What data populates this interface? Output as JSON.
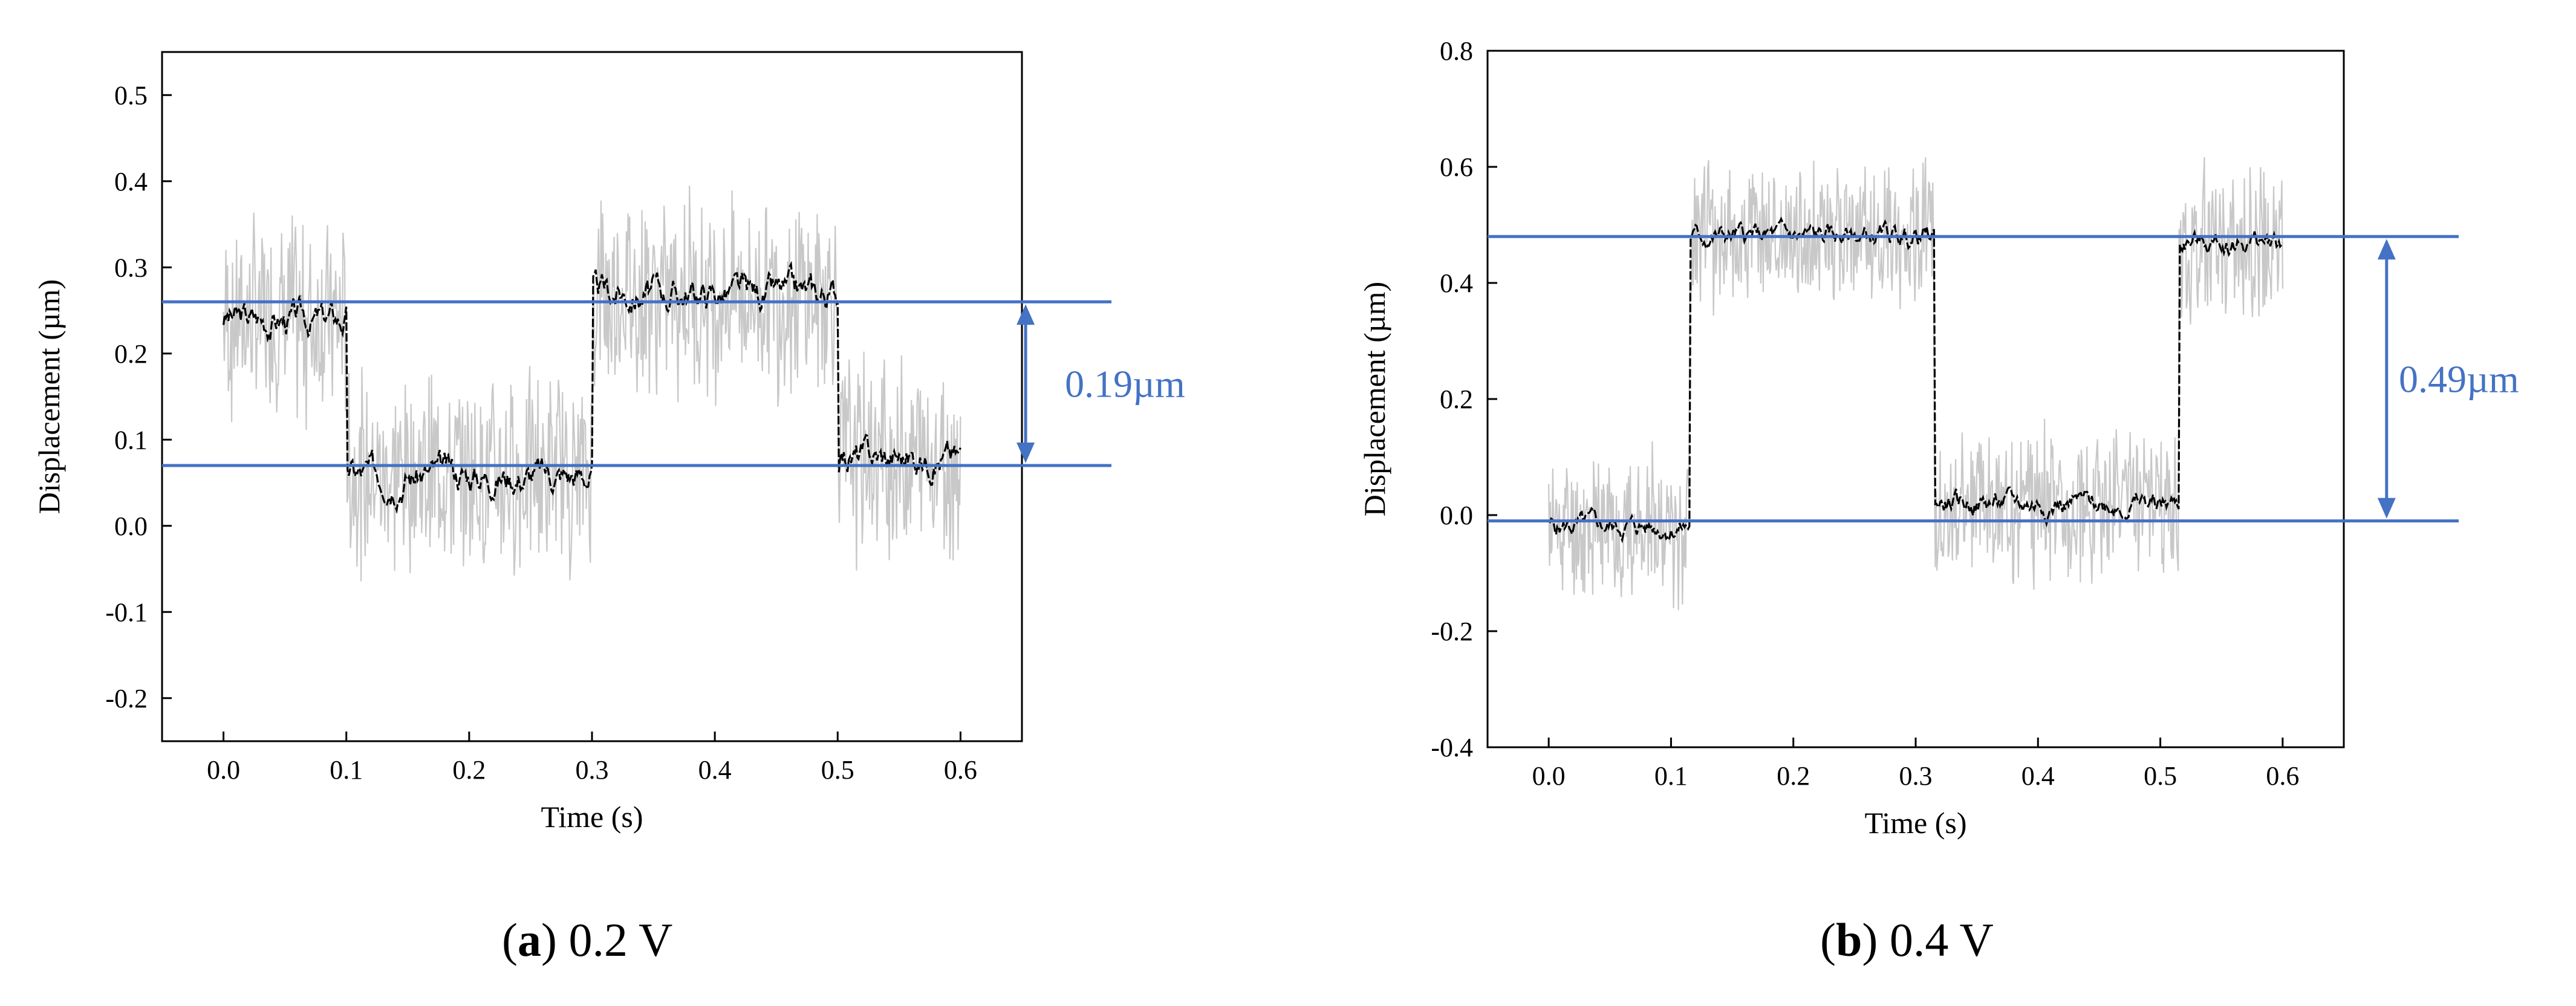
{
  "chart_data": [
    {
      "type": "line",
      "panel": "a",
      "caption_letter": "a",
      "caption_rest": " 0.2 V",
      "xlabel": "Time (s)",
      "ylabel": "Displacement (µm)",
      "xlim": [
        -0.05,
        0.65
      ],
      "ylim": [
        -0.25,
        0.55
      ],
      "xticks": [
        0.0,
        0.1,
        0.2,
        0.3,
        0.4,
        0.5,
        0.6
      ],
      "xtick_labels": [
        "0.0",
        "0.1",
        "0.2",
        "0.3",
        "0.4",
        "0.5",
        "0.6"
      ],
      "yticks": [
        -0.2,
        -0.1,
        0.0,
        0.1,
        0.2,
        0.3,
        0.4,
        0.5
      ],
      "ytick_labels": [
        "-0.2",
        "-0.1",
        "0.0",
        "0.1",
        "0.2",
        "0.3",
        "0.4",
        "0.5"
      ],
      "series": [
        {
          "name": "raw",
          "color": "#c8c8c8",
          "noise": 0.11,
          "seed": 7
        },
        {
          "name": "smoothed",
          "color": "#000000",
          "noise": 0.02,
          "seed": 3
        }
      ],
      "segments": [
        {
          "x0": 0.0,
          "x1": 0.1,
          "y": 0.24
        },
        {
          "x0": 0.1,
          "x1": 0.3,
          "y": 0.06
        },
        {
          "x0": 0.3,
          "x1": 0.5,
          "y": 0.27
        },
        {
          "x0": 0.5,
          "x1": 0.6,
          "y": 0.08
        }
      ],
      "hlines": [
        0.26,
        0.07
      ],
      "annotation_x": 0.653,
      "annotation_label_x": 0.685,
      "annotation": "0.19µm"
    },
    {
      "type": "line",
      "panel": "b",
      "caption_letter": "b",
      "caption_rest": " 0.4 V",
      "xlabel": "Time (s)",
      "ylabel": "Displacement (µm)",
      "xlim": [
        -0.05,
        0.65
      ],
      "ylim": [
        -0.4,
        0.8
      ],
      "xticks": [
        0.0,
        0.1,
        0.2,
        0.3,
        0.4,
        0.5,
        0.6
      ],
      "xtick_labels": [
        "0.0",
        "0.1",
        "0.2",
        "0.3",
        "0.4",
        "0.5",
        "0.6"
      ],
      "yticks": [
        -0.4,
        -0.2,
        0.0,
        0.2,
        0.4,
        0.6,
        0.8
      ],
      "ytick_labels": [
        "-0.4",
        "-0.2",
        "0.0",
        "0.2",
        "0.4",
        "0.6",
        "0.8"
      ],
      "series": [
        {
          "name": "raw",
          "color": "#c8c8c8",
          "noise": 0.12,
          "seed": 11
        },
        {
          "name": "smoothed",
          "color": "#000000",
          "noise": 0.02,
          "seed": 5
        }
      ],
      "segments": [
        {
          "x0": 0.0,
          "x1": 0.115,
          "y": -0.02
        },
        {
          "x0": 0.115,
          "x1": 0.315,
          "y": 0.48
        },
        {
          "x0": 0.315,
          "x1": 0.515,
          "y": 0.02
        },
        {
          "x0": 0.515,
          "x1": 0.6,
          "y": 0.47
        }
      ],
      "hlines": [
        0.48,
        -0.01
      ],
      "annotation_x": 0.685,
      "annotation_label_x": 0.695,
      "annotation": "0.49µm"
    }
  ],
  "colors": {
    "reference_line": "#4472c4",
    "raw": "#c8c8c8",
    "smoothed": "#000000",
    "frame": "#000000"
  }
}
